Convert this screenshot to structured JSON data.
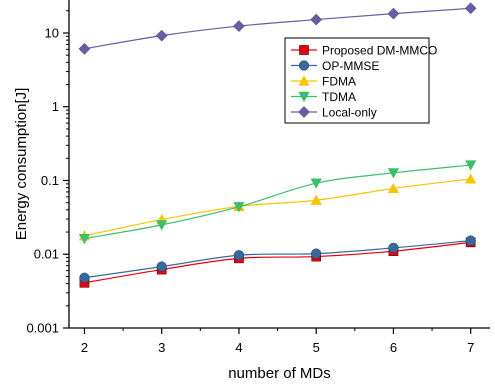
{
  "chart_data": {
    "type": "line",
    "title": "",
    "xlabel": "number of MDs",
    "ylabel": "Energy consumption[J]",
    "x": [
      2,
      3,
      4,
      5,
      6,
      7
    ],
    "xlim": [
      1.8,
      7.25
    ],
    "xticks": [
      "2",
      "3",
      "4",
      "5",
      "6",
      "7"
    ],
    "yscale": "log",
    "ylim": [
      0.001,
      28
    ],
    "yticks": [
      {
        "value": 0.001,
        "label": "0.001"
      },
      {
        "value": 0.01,
        "label": "0.01"
      },
      {
        "value": 0.1,
        "label": "0.1"
      },
      {
        "value": 1,
        "label": "1"
      },
      {
        "value": 10,
        "label": "10"
      }
    ],
    "grid": false,
    "legend_position": "upper-right",
    "series": [
      {
        "name": "Proposed DM-MMCO",
        "color": "#e8000b",
        "marker": "square",
        "values": [
          0.0041,
          0.0062,
          0.0088,
          0.0093,
          0.011,
          0.0145
        ]
      },
      {
        "name": "OP-MMSE",
        "color": "#356a9e",
        "marker": "circle",
        "values": [
          0.0048,
          0.0068,
          0.0097,
          0.0102,
          0.0122,
          0.0153
        ]
      },
      {
        "name": "FDMA",
        "color": "#f7c400",
        "marker": "triangle-up",
        "values": [
          0.0178,
          0.0295,
          0.0445,
          0.054,
          0.078,
          0.105
        ]
      },
      {
        "name": "TDMA",
        "color": "#3cbf6a",
        "marker": "triangle-down",
        "values": [
          0.0163,
          0.025,
          0.044,
          0.092,
          0.127,
          0.162
        ]
      },
      {
        "name": "Local-only",
        "color": "#6a5ba5",
        "marker": "diamond",
        "values": [
          6.1,
          9.2,
          12.4,
          15.2,
          18.3,
          21.6
        ]
      }
    ]
  }
}
